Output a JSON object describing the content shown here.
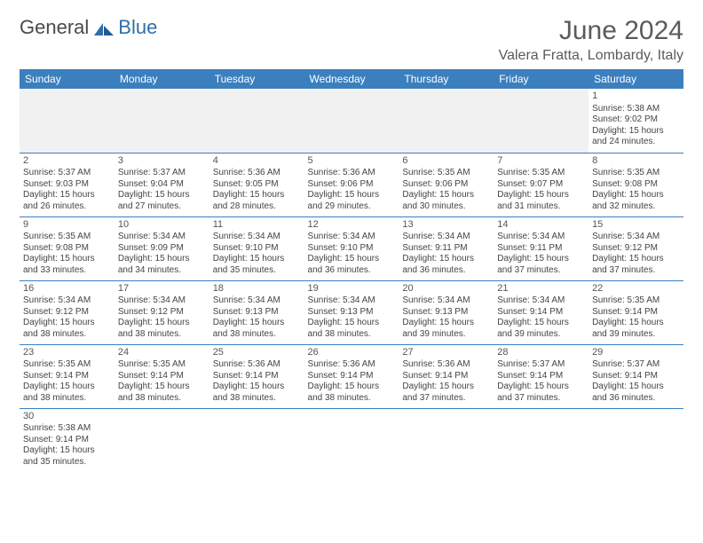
{
  "brand": {
    "part1": "General",
    "part2": "Blue"
  },
  "title": "June 2024",
  "location": "Valera Fratta, Lombardy, Italy",
  "colors": {
    "header_bg": "#3b7fbf",
    "header_text": "#ffffff",
    "rule": "#3b7fbf",
    "text": "#444444",
    "title_text": "#5b5b5b",
    "blank_bg": "#f1f1f1"
  },
  "fonts": {
    "body_pt": 10,
    "daynum_pt": 11,
    "header_pt": 12,
    "title_pt": 30,
    "location_pt": 16
  },
  "weekdays": [
    "Sunday",
    "Monday",
    "Tuesday",
    "Wednesday",
    "Thursday",
    "Friday",
    "Saturday"
  ],
  "weeks": [
    [
      null,
      null,
      null,
      null,
      null,
      null,
      {
        "n": "1",
        "sr": "Sunrise: 5:38 AM",
        "ss": "Sunset: 9:02 PM",
        "dl1": "Daylight: 15 hours",
        "dl2": "and 24 minutes."
      }
    ],
    [
      {
        "n": "2",
        "sr": "Sunrise: 5:37 AM",
        "ss": "Sunset: 9:03 PM",
        "dl1": "Daylight: 15 hours",
        "dl2": "and 26 minutes."
      },
      {
        "n": "3",
        "sr": "Sunrise: 5:37 AM",
        "ss": "Sunset: 9:04 PM",
        "dl1": "Daylight: 15 hours",
        "dl2": "and 27 minutes."
      },
      {
        "n": "4",
        "sr": "Sunrise: 5:36 AM",
        "ss": "Sunset: 9:05 PM",
        "dl1": "Daylight: 15 hours",
        "dl2": "and 28 minutes."
      },
      {
        "n": "5",
        "sr": "Sunrise: 5:36 AM",
        "ss": "Sunset: 9:06 PM",
        "dl1": "Daylight: 15 hours",
        "dl2": "and 29 minutes."
      },
      {
        "n": "6",
        "sr": "Sunrise: 5:35 AM",
        "ss": "Sunset: 9:06 PM",
        "dl1": "Daylight: 15 hours",
        "dl2": "and 30 minutes."
      },
      {
        "n": "7",
        "sr": "Sunrise: 5:35 AM",
        "ss": "Sunset: 9:07 PM",
        "dl1": "Daylight: 15 hours",
        "dl2": "and 31 minutes."
      },
      {
        "n": "8",
        "sr": "Sunrise: 5:35 AM",
        "ss": "Sunset: 9:08 PM",
        "dl1": "Daylight: 15 hours",
        "dl2": "and 32 minutes."
      }
    ],
    [
      {
        "n": "9",
        "sr": "Sunrise: 5:35 AM",
        "ss": "Sunset: 9:08 PM",
        "dl1": "Daylight: 15 hours",
        "dl2": "and 33 minutes."
      },
      {
        "n": "10",
        "sr": "Sunrise: 5:34 AM",
        "ss": "Sunset: 9:09 PM",
        "dl1": "Daylight: 15 hours",
        "dl2": "and 34 minutes."
      },
      {
        "n": "11",
        "sr": "Sunrise: 5:34 AM",
        "ss": "Sunset: 9:10 PM",
        "dl1": "Daylight: 15 hours",
        "dl2": "and 35 minutes."
      },
      {
        "n": "12",
        "sr": "Sunrise: 5:34 AM",
        "ss": "Sunset: 9:10 PM",
        "dl1": "Daylight: 15 hours",
        "dl2": "and 36 minutes."
      },
      {
        "n": "13",
        "sr": "Sunrise: 5:34 AM",
        "ss": "Sunset: 9:11 PM",
        "dl1": "Daylight: 15 hours",
        "dl2": "and 36 minutes."
      },
      {
        "n": "14",
        "sr": "Sunrise: 5:34 AM",
        "ss": "Sunset: 9:11 PM",
        "dl1": "Daylight: 15 hours",
        "dl2": "and 37 minutes."
      },
      {
        "n": "15",
        "sr": "Sunrise: 5:34 AM",
        "ss": "Sunset: 9:12 PM",
        "dl1": "Daylight: 15 hours",
        "dl2": "and 37 minutes."
      }
    ],
    [
      {
        "n": "16",
        "sr": "Sunrise: 5:34 AM",
        "ss": "Sunset: 9:12 PM",
        "dl1": "Daylight: 15 hours",
        "dl2": "and 38 minutes."
      },
      {
        "n": "17",
        "sr": "Sunrise: 5:34 AM",
        "ss": "Sunset: 9:12 PM",
        "dl1": "Daylight: 15 hours",
        "dl2": "and 38 minutes."
      },
      {
        "n": "18",
        "sr": "Sunrise: 5:34 AM",
        "ss": "Sunset: 9:13 PM",
        "dl1": "Daylight: 15 hours",
        "dl2": "and 38 minutes."
      },
      {
        "n": "19",
        "sr": "Sunrise: 5:34 AM",
        "ss": "Sunset: 9:13 PM",
        "dl1": "Daylight: 15 hours",
        "dl2": "and 38 minutes."
      },
      {
        "n": "20",
        "sr": "Sunrise: 5:34 AM",
        "ss": "Sunset: 9:13 PM",
        "dl1": "Daylight: 15 hours",
        "dl2": "and 39 minutes."
      },
      {
        "n": "21",
        "sr": "Sunrise: 5:34 AM",
        "ss": "Sunset: 9:14 PM",
        "dl1": "Daylight: 15 hours",
        "dl2": "and 39 minutes."
      },
      {
        "n": "22",
        "sr": "Sunrise: 5:35 AM",
        "ss": "Sunset: 9:14 PM",
        "dl1": "Daylight: 15 hours",
        "dl2": "and 39 minutes."
      }
    ],
    [
      {
        "n": "23",
        "sr": "Sunrise: 5:35 AM",
        "ss": "Sunset: 9:14 PM",
        "dl1": "Daylight: 15 hours",
        "dl2": "and 38 minutes."
      },
      {
        "n": "24",
        "sr": "Sunrise: 5:35 AM",
        "ss": "Sunset: 9:14 PM",
        "dl1": "Daylight: 15 hours",
        "dl2": "and 38 minutes."
      },
      {
        "n": "25",
        "sr": "Sunrise: 5:36 AM",
        "ss": "Sunset: 9:14 PM",
        "dl1": "Daylight: 15 hours",
        "dl2": "and 38 minutes."
      },
      {
        "n": "26",
        "sr": "Sunrise: 5:36 AM",
        "ss": "Sunset: 9:14 PM",
        "dl1": "Daylight: 15 hours",
        "dl2": "and 38 minutes."
      },
      {
        "n": "27",
        "sr": "Sunrise: 5:36 AM",
        "ss": "Sunset: 9:14 PM",
        "dl1": "Daylight: 15 hours",
        "dl2": "and 37 minutes."
      },
      {
        "n": "28",
        "sr": "Sunrise: 5:37 AM",
        "ss": "Sunset: 9:14 PM",
        "dl1": "Daylight: 15 hours",
        "dl2": "and 37 minutes."
      },
      {
        "n": "29",
        "sr": "Sunrise: 5:37 AM",
        "ss": "Sunset: 9:14 PM",
        "dl1": "Daylight: 15 hours",
        "dl2": "and 36 minutes."
      }
    ],
    [
      {
        "n": "30",
        "sr": "Sunrise: 5:38 AM",
        "ss": "Sunset: 9:14 PM",
        "dl1": "Daylight: 15 hours",
        "dl2": "and 35 minutes."
      },
      null,
      null,
      null,
      null,
      null,
      null
    ]
  ]
}
